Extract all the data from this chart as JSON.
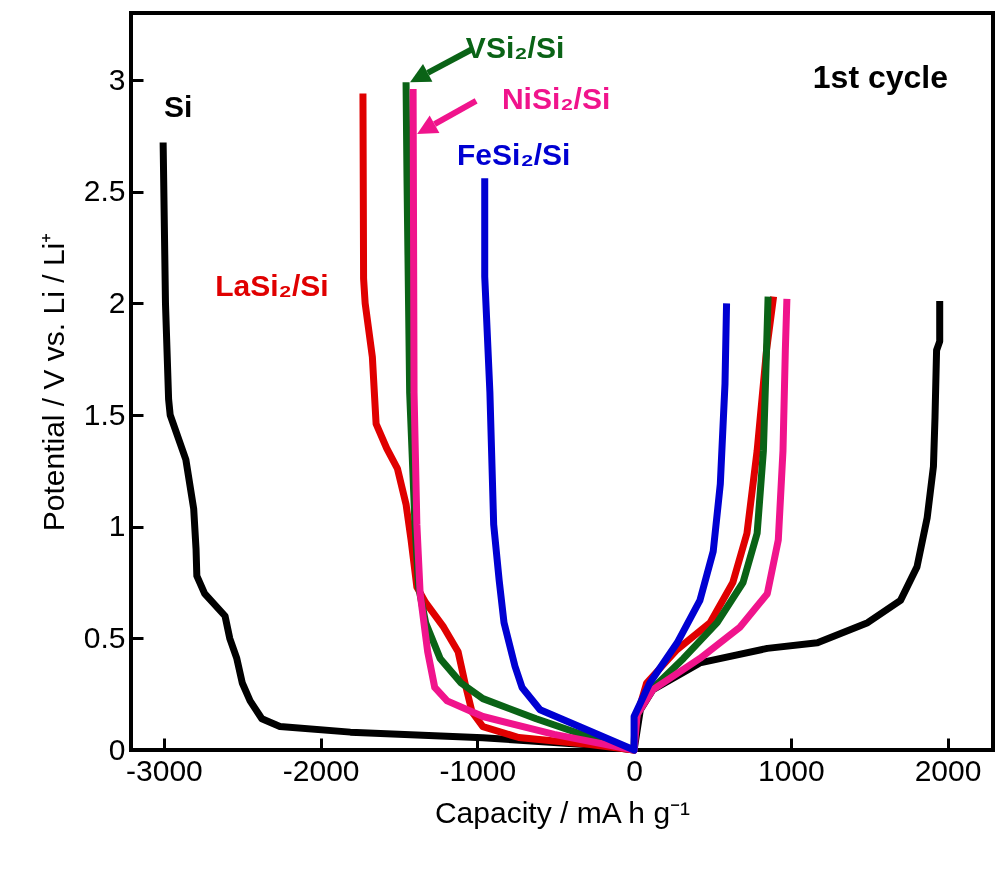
{
  "chart_data": {
    "type": "line",
    "xlabel": "Capacity / mA h g⁻¹",
    "ylabel": "Potential / V vs. Li / Li⁺",
    "annotations": [
      "1st cycle"
    ],
    "legend": "top",
    "xlim": [
      -3210,
      2290
    ],
    "ylim": [
      0,
      3.3
    ],
    "xticks": [
      -3000,
      -2000,
      -1000,
      0,
      1000,
      2000
    ],
    "yticks": [
      0,
      0.5,
      1,
      1.5,
      2,
      2.5,
      3
    ],
    "series": [
      {
        "name": "Si",
        "color": "#000000",
        "x": [
          -3005,
          -2990,
          -2970,
          -2960,
          -2860,
          -2810,
          -2795,
          -2790,
          -2740,
          -2610,
          -2580,
          -2535,
          -2500,
          -2450,
          -2375,
          -2260,
          -1810,
          -965,
          -220,
          0,
          40,
          120,
          420,
          850,
          1170,
          1490,
          1700,
          1805,
          1870,
          1910,
          1920,
          1930,
          1950,
          1950
        ],
        "values": [
          2.72,
          2.0,
          1.57,
          1.5,
          1.3,
          1.08,
          0.9,
          0.78,
          0.7,
          0.6,
          0.5,
          0.41,
          0.3,
          0.22,
          0.14,
          0.105,
          0.08,
          0.055,
          0.02,
          0,
          0.18,
          0.27,
          0.39,
          0.455,
          0.48,
          0.57,
          0.67,
          0.82,
          1.04,
          1.27,
          1.49,
          1.79,
          1.83,
          2.01
        ]
      },
      {
        "name": "LaSi₂/Si",
        "color": "#e00000",
        "x": [
          -1730,
          -1726,
          -1716,
          -1670,
          -1646,
          -1578,
          -1510,
          -1455,
          -1423,
          -1386,
          -1330,
          -1215,
          -1123,
          -1079,
          -1034,
          -965,
          -736,
          -280,
          0,
          5,
          80,
          275,
          485,
          630,
          720,
          785,
          845,
          890
        ],
        "values": [
          2.94,
          2.11,
          2.0,
          1.76,
          1.46,
          1.35,
          1.26,
          1.1,
          0.94,
          0.73,
          0.66,
          0.55,
          0.44,
          0.3,
          0.17,
          0.105,
          0.056,
          0.025,
          0,
          0.12,
          0.3,
          0.45,
          0.57,
          0.75,
          0.97,
          1.34,
          1.79,
          2.03
        ]
      },
      {
        "name": "VSi₂/Si",
        "color": "#0a6316",
        "x": [
          -1455,
          -1449,
          -1432,
          -1398,
          -1375,
          -1330,
          -1238,
          -1104,
          -965,
          -625,
          -280,
          0,
          5,
          80,
          315,
          530,
          695,
          785,
          825,
          845,
          855
        ],
        "values": [
          2.99,
          2.56,
          1.6,
          1.01,
          0.73,
          0.57,
          0.41,
          0.3,
          0.23,
          0.14,
          0.057,
          0,
          0.13,
          0.25,
          0.41,
          0.57,
          0.75,
          0.97,
          1.34,
          1.79,
          2.03
        ]
      },
      {
        "name": "NiSi₂/Si",
        "color": "#f0148c",
        "x": [
          -1410,
          -1404,
          -1386,
          -1365,
          -1317,
          -1272,
          -1193,
          -965,
          -510,
          0,
          20,
          120,
          420,
          675,
          850,
          920,
          950,
          965,
          975
        ],
        "values": [
          2.96,
          1.6,
          1.01,
          0.7,
          0.44,
          0.28,
          0.22,
          0.15,
          0.07,
          0,
          0.16,
          0.27,
          0.41,
          0.55,
          0.7,
          0.94,
          1.34,
          1.79,
          2.02
        ]
      },
      {
        "name": "FeSi₂/Si",
        "color": "#0000d2",
        "x": [
          -953,
          -953,
          -920,
          -896,
          -861,
          -830,
          -760,
          -715,
          -600,
          -350,
          0,
          0,
          100,
          275,
          420,
          505,
          550,
          580,
          590
        ],
        "values": [
          2.56,
          2.12,
          1.6,
          1.01,
          0.76,
          0.57,
          0.375,
          0.28,
          0.18,
          0.105,
          0,
          0.15,
          0.3,
          0.48,
          0.67,
          0.89,
          1.19,
          1.64,
          2.0
        ]
      }
    ]
  }
}
